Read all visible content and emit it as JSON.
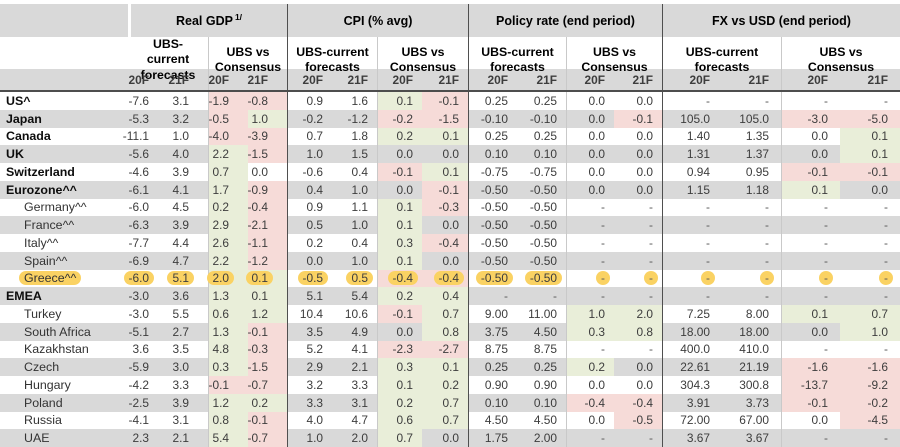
{
  "header": {
    "sections": [
      {
        "title": "Real GDP",
        "footnote": "1/"
      },
      {
        "title": "CPI (% avg)",
        "footnote": ""
      },
      {
        "title": "Policy rate (end period)",
        "footnote": ""
      },
      {
        "title": "FX vs USD (end period)",
        "footnote": ""
      }
    ],
    "sub_current": "UBS-current forecasts",
    "sub_vs": "UBS vs Consensus",
    "year_labels": [
      "20F",
      "21F"
    ]
  },
  "colors": {
    "positive_bg": "#e9eed9",
    "negative_bg": "#f6dbd8",
    "stripe": "#d9d9d9",
    "header_band": "#d9d9d9",
    "header_rule": "#4d4d4d",
    "separator_dark": "#4f4f4f",
    "separator_light": "#c9c9c9",
    "highlight": "#fad263"
  },
  "rows": [
    {
      "label": "US^",
      "bold": true,
      "indent": false,
      "highlight": false,
      "gdp": [
        "-7.6",
        "3.1",
        "-1.9",
        "-0.8"
      ],
      "cpi": [
        "0.9",
        "1.6",
        "0.1",
        "-0.1"
      ],
      "policy": [
        "0.25",
        "0.25",
        "0.0",
        "0.0"
      ],
      "fx": [
        "-",
        "-",
        "-",
        "-"
      ]
    },
    {
      "label": "Japan",
      "bold": true,
      "indent": false,
      "highlight": false,
      "gdp": [
        "-5.3",
        "3.2",
        "-0.5",
        "1.0"
      ],
      "cpi": [
        "-0.2",
        "-1.2",
        "-0.2",
        "-1.5"
      ],
      "policy": [
        "-0.10",
        "-0.10",
        "0.0",
        "-0.1"
      ],
      "fx": [
        "105.0",
        "105.0",
        "-3.0",
        "-5.0"
      ]
    },
    {
      "label": "Canada",
      "bold": true,
      "indent": false,
      "highlight": false,
      "gdp": [
        "-11.1",
        "1.0",
        "-4.0",
        "-3.9"
      ],
      "cpi": [
        "0.7",
        "1.8",
        "0.2",
        "0.1"
      ],
      "policy": [
        "0.25",
        "0.25",
        "0.0",
        "0.0"
      ],
      "fx": [
        "1.40",
        "1.35",
        "0.0",
        "0.1"
      ]
    },
    {
      "label": "UK",
      "bold": true,
      "indent": false,
      "highlight": false,
      "gdp": [
        "-5.6",
        "4.0",
        "2.2",
        "-1.5"
      ],
      "cpi": [
        "1.0",
        "1.5",
        "0.0",
        "0.0"
      ],
      "policy": [
        "0.10",
        "0.10",
        "0.0",
        "0.0"
      ],
      "fx": [
        "1.31",
        "1.37",
        "0.0",
        "0.1"
      ]
    },
    {
      "label": "Switzerland",
      "bold": true,
      "indent": false,
      "highlight": false,
      "gdp": [
        "-4.6",
        "3.9",
        "0.7",
        "0.0"
      ],
      "cpi": [
        "-0.6",
        "0.4",
        "-0.1",
        "0.1"
      ],
      "policy": [
        "-0.75",
        "-0.75",
        "0.0",
        "0.0"
      ],
      "fx": [
        "0.94",
        "0.95",
        "-0.1",
        "-0.1"
      ]
    },
    {
      "label": "Eurozone^^",
      "bold": true,
      "indent": false,
      "highlight": false,
      "gdp": [
        "-6.1",
        "4.1",
        "1.7",
        "-0.9"
      ],
      "cpi": [
        "0.4",
        "1.0",
        "0.0",
        "-0.1"
      ],
      "policy": [
        "-0.50",
        "-0.50",
        "0.0",
        "0.0"
      ],
      "fx": [
        "1.15",
        "1.18",
        "0.1",
        "0.0"
      ]
    },
    {
      "label": "Germany^^",
      "bold": false,
      "indent": true,
      "highlight": false,
      "gdp": [
        "-6.0",
        "4.5",
        "0.2",
        "-0.4"
      ],
      "cpi": [
        "0.9",
        "1.1",
        "0.1",
        "-0.3"
      ],
      "policy": [
        "-0.50",
        "-0.50",
        "-",
        "-"
      ],
      "fx": [
        "-",
        "-",
        "-",
        "-"
      ]
    },
    {
      "label": "France^^",
      "bold": false,
      "indent": true,
      "highlight": false,
      "gdp": [
        "-6.3",
        "3.9",
        "2.9",
        "-2.1"
      ],
      "cpi": [
        "0.5",
        "1.0",
        "0.1",
        "0.0"
      ],
      "policy": [
        "-0.50",
        "-0.50",
        "-",
        "-"
      ],
      "fx": [
        "-",
        "-",
        "-",
        "-"
      ]
    },
    {
      "label": "Italy^^",
      "bold": false,
      "indent": true,
      "highlight": false,
      "gdp": [
        "-7.7",
        "4.4",
        "2.6",
        "-1.1"
      ],
      "cpi": [
        "0.2",
        "0.4",
        "0.3",
        "-0.4"
      ],
      "policy": [
        "-0.50",
        "-0.50",
        "-",
        "-"
      ],
      "fx": [
        "-",
        "-",
        "-",
        "-"
      ]
    },
    {
      "label": "Spain^^",
      "bold": false,
      "indent": true,
      "highlight": false,
      "gdp": [
        "-6.9",
        "4.7",
        "2.2",
        "-1.2"
      ],
      "cpi": [
        "0.0",
        "1.0",
        "0.1",
        "0.0"
      ],
      "policy": [
        "-0.50",
        "-0.50",
        "-",
        "-"
      ],
      "fx": [
        "-",
        "-",
        "-",
        "-"
      ]
    },
    {
      "label": "Greece^^",
      "bold": false,
      "indent": true,
      "highlight": true,
      "gdp": [
        "-6.0",
        "5.1",
        "2.0",
        "0.1"
      ],
      "cpi": [
        "-0.5",
        "0.5",
        "-0.4",
        "-0.4"
      ],
      "policy": [
        "-0.50",
        "-0.50",
        "-",
        "-"
      ],
      "fx": [
        "-",
        "-",
        "-",
        "-"
      ]
    },
    {
      "label": "EMEA",
      "bold": true,
      "indent": false,
      "highlight": false,
      "gdp": [
        "-3.0",
        "3.6",
        "1.3",
        "0.1"
      ],
      "cpi": [
        "5.1",
        "5.4",
        "0.2",
        "0.4"
      ],
      "policy": [
        "-",
        "-",
        "-",
        "-"
      ],
      "fx": [
        "-",
        "-",
        "-",
        "-"
      ]
    },
    {
      "label": "Turkey",
      "bold": false,
      "indent": true,
      "highlight": false,
      "gdp": [
        "-3.0",
        "5.5",
        "0.6",
        "1.2"
      ],
      "cpi": [
        "10.4",
        "10.6",
        "-0.1",
        "0.7"
      ],
      "policy": [
        "9.00",
        "11.00",
        "1.0",
        "2.0"
      ],
      "fx": [
        "7.25",
        "8.00",
        "0.1",
        "0.7"
      ]
    },
    {
      "label": "South Africa",
      "bold": false,
      "indent": true,
      "highlight": false,
      "gdp": [
        "-5.1",
        "2.7",
        "1.3",
        "-0.1"
      ],
      "cpi": [
        "3.5",
        "4.9",
        "0.0",
        "0.8"
      ],
      "policy": [
        "3.75",
        "4.50",
        "0.3",
        "0.8"
      ],
      "fx": [
        "18.00",
        "18.00",
        "0.0",
        "1.0"
      ]
    },
    {
      "label": "Kazakhstan",
      "bold": false,
      "indent": true,
      "highlight": false,
      "gdp": [
        "3.6",
        "3.5",
        "4.8",
        "-0.3"
      ],
      "cpi": [
        "5.2",
        "4.1",
        "-2.3",
        "-2.7"
      ],
      "policy": [
        "8.75",
        "8.75",
        "-",
        "-"
      ],
      "fx": [
        "400.0",
        "410.0",
        "-",
        "-"
      ]
    },
    {
      "label": "Czech",
      "bold": false,
      "indent": true,
      "highlight": false,
      "gdp": [
        "-5.9",
        "3.0",
        "0.3",
        "-1.5"
      ],
      "cpi": [
        "2.9",
        "2.1",
        "0.3",
        "0.1"
      ],
      "policy": [
        "0.25",
        "0.25",
        "0.2",
        "0.0"
      ],
      "fx": [
        "22.61",
        "21.19",
        "-1.6",
        "-1.6"
      ]
    },
    {
      "label": "Hungary",
      "bold": false,
      "indent": true,
      "highlight": false,
      "gdp": [
        "-4.2",
        "3.3",
        "-0.1",
        "-0.7"
      ],
      "cpi": [
        "3.2",
        "3.3",
        "0.1",
        "0.2"
      ],
      "policy": [
        "0.90",
        "0.90",
        "0.0",
        "0.0"
      ],
      "fx": [
        "304.3",
        "300.8",
        "-13.7",
        "-9.2"
      ]
    },
    {
      "label": "Poland",
      "bold": false,
      "indent": true,
      "highlight": false,
      "gdp": [
        "-2.5",
        "3.9",
        "1.2",
        "0.2"
      ],
      "cpi": [
        "3.3",
        "3.1",
        "0.2",
        "0.7"
      ],
      "policy": [
        "0.10",
        "0.10",
        "-0.4",
        "-0.4"
      ],
      "fx": [
        "3.91",
        "3.73",
        "-0.1",
        "-0.2"
      ]
    },
    {
      "label": "Russia",
      "bold": false,
      "indent": true,
      "highlight": false,
      "gdp": [
        "-4.1",
        "3.1",
        "0.8",
        "-0.1"
      ],
      "cpi": [
        "4.0",
        "4.7",
        "0.6",
        "0.7"
      ],
      "policy": [
        "4.50",
        "4.50",
        "0.0",
        "-0.5"
      ],
      "fx": [
        "72.00",
        "67.00",
        "0.0",
        "-4.5"
      ]
    },
    {
      "label": "UAE",
      "bold": false,
      "indent": true,
      "highlight": false,
      "gdp": [
        "2.3",
        "2.1",
        "5.4",
        "-0.7"
      ],
      "cpi": [
        "1.0",
        "2.0",
        "0.7",
        "0.0"
      ],
      "policy": [
        "1.75",
        "2.00",
        "-",
        "-"
      ],
      "fx": [
        "3.67",
        "3.67",
        "-",
        "-"
      ]
    }
  ]
}
